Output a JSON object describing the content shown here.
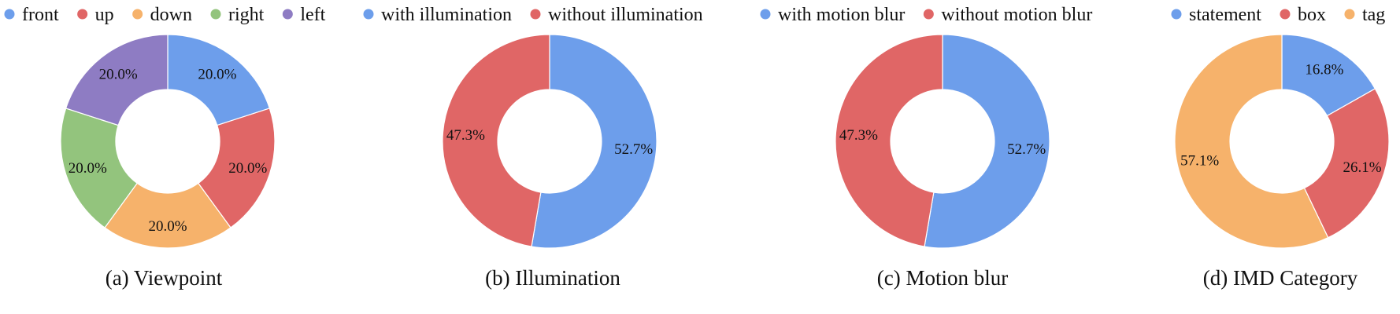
{
  "chart_data": [
    {
      "type": "pie",
      "subtitle": "(a) Viewpoint",
      "categories": [
        "front",
        "up",
        "down",
        "right",
        "left"
      ],
      "values": [
        20.0,
        20.0,
        20.0,
        20.0,
        20.0
      ],
      "labels": [
        "20.0%",
        "20.0%",
        "20.0%",
        "20.0%",
        "20.0%"
      ],
      "colors": [
        "#6d9eeb",
        "#e06666",
        "#f6b26b",
        "#93c47d",
        "#8e7cc3"
      ],
      "legend_position": "top"
    },
    {
      "type": "pie",
      "subtitle": "(b) Illumination",
      "categories": [
        "with illumination",
        "without illumination"
      ],
      "values": [
        52.7,
        47.3
      ],
      "labels": [
        "52.7%",
        "47.3%"
      ],
      "colors": [
        "#6d9eeb",
        "#e06666"
      ],
      "legend_position": "top"
    },
    {
      "type": "pie",
      "subtitle": "(c) Motion blur",
      "categories": [
        "with motion blur",
        "without motion blur"
      ],
      "values": [
        52.7,
        47.3
      ],
      "labels": [
        "52.7%",
        "47.3%"
      ],
      "colors": [
        "#6d9eeb",
        "#e06666"
      ],
      "legend_position": "top"
    },
    {
      "type": "pie",
      "subtitle": "(d) IMD Category",
      "categories": [
        "statement",
        "box",
        "tag"
      ],
      "values": [
        16.8,
        26.1,
        57.1
      ],
      "labels": [
        "16.8%",
        "26.1%",
        "57.1%"
      ],
      "colors": [
        "#6d9eeb",
        "#e06666",
        "#f6b26b"
      ],
      "legend_position": "top"
    }
  ]
}
